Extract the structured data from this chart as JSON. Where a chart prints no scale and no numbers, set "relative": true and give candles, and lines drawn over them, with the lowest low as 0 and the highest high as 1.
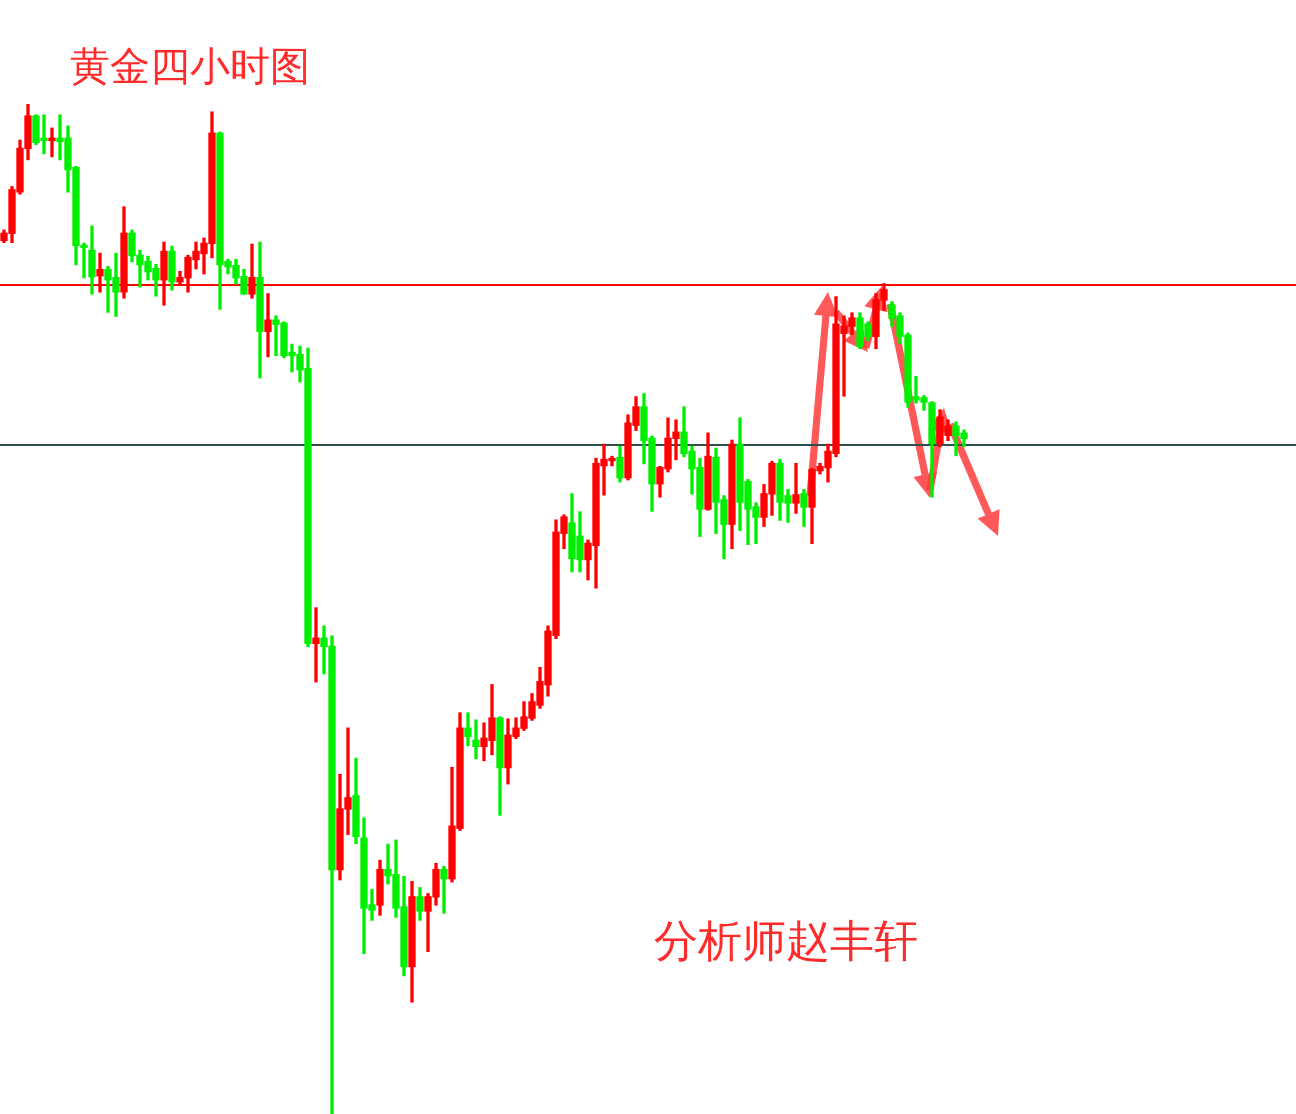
{
  "chart_data": {
    "type": "candlestick",
    "title": "黄金四小时图",
    "annotations": [
      "分析师赵丰轩"
    ],
    "relative": true,
    "categories": [
      null,
      null,
      null,
      null,
      null,
      null,
      null,
      null,
      null,
      null,
      null,
      null,
      null,
      null,
      null,
      null,
      null,
      null,
      null,
      null,
      null,
      null,
      null,
      null,
      null,
      null,
      null,
      null,
      null,
      null,
      null,
      null,
      null,
      null,
      null,
      null,
      null,
      null,
      null,
      null,
      null,
      null,
      null,
      null,
      null,
      null,
      null,
      null,
      null,
      null,
      null,
      null,
      null,
      null,
      null,
      null,
      null,
      null,
      null,
      null,
      null,
      null,
      null,
      null,
      null,
      null,
      null,
      null,
      null,
      null,
      null,
      null,
      null,
      null,
      null,
      null,
      null,
      null,
      null,
      null,
      null,
      null,
      null,
      null,
      null,
      null,
      null,
      null,
      null,
      null,
      null,
      null,
      null,
      null,
      null,
      null,
      null,
      null,
      null,
      null,
      null,
      null,
      null,
      null,
      null,
      null,
      null,
      null,
      null,
      null,
      null,
      null,
      null,
      null,
      null,
      null,
      null,
      null,
      null,
      null,
      null
    ],
    "ohlc": [
      [
        0.865,
        0.875,
        0.863,
        0.872
      ],
      [
        0.872,
        0.918,
        0.863,
        0.915
      ],
      [
        0.913,
        0.964,
        0.911,
        0.956
      ],
      [
        0.956,
        1,
        0.945,
        0.988
      ],
      [
        0.988,
        0.989,
        0.96,
        0.962
      ],
      [
        0.966,
        0.989,
        0.951,
        0.964
      ],
      [
        0.964,
        0.976,
        0.948,
        0.966
      ],
      [
        0.966,
        0.989,
        0.945,
        0.963
      ],
      [
        0.966,
        0.978,
        0.913,
        0.935
      ],
      [
        0.937,
        0.938,
        0.841,
        0.86
      ],
      [
        0.86,
        0.862,
        0.828,
        0.858
      ],
      [
        0.855,
        0.879,
        0.812,
        0.829
      ],
      [
        0.83,
        0.852,
        0.814,
        0.836
      ],
      [
        0.836,
        0.839,
        0.794,
        0.826
      ],
      [
        0.828,
        0.852,
        0.79,
        0.814
      ],
      [
        0.814,
        0.898,
        0.808,
        0.872
      ],
      [
        0.872,
        0.875,
        0.844,
        0.85
      ],
      [
        0.85,
        0.855,
        0.819,
        0.841
      ],
      [
        0.844,
        0.849,
        0.826,
        0.834
      ],
      [
        0.837,
        0.841,
        0.81,
        0.826
      ],
      [
        0.826,
        0.863,
        0.801,
        0.854
      ],
      [
        0.854,
        0.859,
        0.816,
        0.824
      ],
      [
        0.824,
        0.834,
        0.821,
        0.828
      ],
      [
        0.828,
        0.85,
        0.814,
        0.848
      ],
      [
        0.846,
        0.863,
        0.837,
        0.854
      ],
      [
        0.852,
        0.867,
        0.832,
        0.862
      ],
      [
        0.862,
        0.992,
        0.848,
        0.971
      ],
      [
        0.971,
        0.972,
        0.797,
        0.841
      ],
      [
        0.844,
        0.846,
        0.832,
        0.839
      ],
      [
        0.84,
        0.846,
        0.822,
        0.828
      ],
      [
        0.829,
        0.836,
        0.812,
        0.812
      ],
      [
        0.812,
        0.861,
        0.808,
        0.828
      ],
      [
        0.828,
        0.863,
        0.729,
        0.775
      ],
      [
        0.775,
        0.812,
        0.75,
        0.786
      ],
      [
        0.786,
        0.79,
        0.751,
        0.782
      ],
      [
        0.783,
        0.784,
        0.749,
        0.751
      ],
      [
        0.754,
        0.762,
        0.735,
        0.751
      ],
      [
        0.752,
        0.76,
        0.725,
        0.737
      ],
      [
        0.738,
        0.758,
        0.463,
        0.466
      ],
      [
        0.466,
        0.501,
        0.428,
        0.471
      ],
      [
        0.471,
        0.483,
        0.436,
        0.463
      ],
      [
        0.463,
        0.473,
        0,
        0.242
      ],
      [
        0.242,
        0.336,
        0.232,
        0.302
      ],
      [
        0.302,
        0.382,
        0.277,
        0.313
      ],
      [
        0.315,
        0.352,
        0.268,
        0.275
      ],
      [
        0.273,
        0.293,
        0.159,
        0.204
      ],
      [
        0.207,
        0.222,
        0.192,
        0.202
      ],
      [
        0.207,
        0.251,
        0.197,
        0.242
      ],
      [
        0.242,
        0.267,
        0.228,
        0.236
      ],
      [
        0.237,
        0.271,
        0.195,
        0.204
      ],
      [
        0.205,
        0.235,
        0.137,
        0.146
      ],
      [
        0.146,
        0.23,
        0.111,
        0.215
      ],
      [
        0.215,
        0.224,
        0.192,
        0.201
      ],
      [
        0.201,
        0.218,
        0.161,
        0.215
      ],
      [
        0.215,
        0.248,
        0.207,
        0.242
      ],
      [
        0.242,
        0.245,
        0.199,
        0.233
      ],
      [
        0.233,
        0.343,
        0.23,
        0.285
      ],
      [
        0.283,
        0.397,
        0.281,
        0.382
      ],
      [
        0.382,
        0.397,
        0.365,
        0.374
      ],
      [
        0.37,
        0.39,
        0.352,
        0.364
      ],
      [
        0.364,
        0.387,
        0.35,
        0.372
      ],
      [
        0.37,
        0.425,
        0.356,
        0.392
      ],
      [
        0.392,
        0.393,
        0.296,
        0.343
      ],
      [
        0.343,
        0.391,
        0.327,
        0.375
      ],
      [
        0.374,
        0.392,
        0.372,
        0.382
      ],
      [
        0.382,
        0.408,
        0.38,
        0.393
      ],
      [
        0.392,
        0.416,
        0.39,
        0.408
      ],
      [
        0.405,
        0.442,
        0.402,
        0.428
      ],
      [
        0.425,
        0.483,
        0.414,
        0.478
      ],
      [
        0.474,
        0.588,
        0.471,
        0.576
      ],
      [
        0.575,
        0.593,
        0.56,
        0.591
      ],
      [
        0.585,
        0.614,
        0.537,
        0.55
      ],
      [
        0.572,
        0.596,
        0.537,
        0.549
      ],
      [
        0.549,
        0.568,
        0.529,
        0.565
      ],
      [
        0.563,
        0.649,
        0.521,
        0.644
      ],
      [
        0.642,
        0.663,
        0.613,
        0.648
      ],
      [
        0.647,
        0.651,
        0.642,
        0.648
      ],
      [
        0.65,
        0.661,
        0.626,
        0.63
      ],
      [
        0.63,
        0.692,
        0.628,
        0.684
      ],
      [
        0.682,
        0.71,
        0.677,
        0.7
      ],
      [
        0.7,
        0.713,
        0.644,
        0.667
      ],
      [
        0.669,
        0.671,
        0.597,
        0.624
      ],
      [
        0.624,
        0.641,
        0.611,
        0.64
      ],
      [
        0.639,
        0.689,
        0.636,
        0.669
      ],
      [
        0.669,
        0.687,
        0.648,
        0.675
      ],
      [
        0.675,
        0.7,
        0.651,
        0.654
      ],
      [
        0.656,
        0.661,
        0.614,
        0.639
      ],
      [
        0.64,
        0.649,
        0.572,
        0.599
      ],
      [
        0.599,
        0.674,
        0.598,
        0.651
      ],
      [
        0.65,
        0.659,
        0.575,
        0.606
      ],
      [
        0.608,
        0.612,
        0.55,
        0.584
      ],
      [
        0.584,
        0.667,
        0.56,
        0.663
      ],
      [
        0.663,
        0.689,
        0.578,
        0.606
      ],
      [
        0.626,
        0.628,
        0.564,
        0.599
      ],
      [
        0.601,
        0.605,
        0.565,
        0.591
      ],
      [
        0.591,
        0.623,
        0.582,
        0.614
      ],
      [
        0.614,
        0.646,
        0.593,
        0.644
      ],
      [
        0.644,
        0.648,
        0.588,
        0.606
      ],
      [
        0.612,
        0.618,
        0.586,
        0.605
      ],
      [
        0.605,
        0.644,
        0.595,
        0.613
      ],
      [
        0.614,
        0.618,
        0.582,
        0.601
      ],
      [
        0.601,
        0.639,
        0.565,
        0.638
      ],
      [
        0.637,
        0.644,
        0.634,
        0.641
      ],
      [
        0.64,
        0.663,
        0.626,
        0.656
      ],
      [
        0.654,
        0.809,
        0.651,
        0.782
      ],
      [
        0.773,
        0.79,
        0.711,
        0.78
      ],
      [
        0.78,
        0.793,
        0.772,
        0.788
      ],
      [
        0.788,
        0.793,
        0.758,
        0.76
      ],
      [
        0.782,
        0.784,
        0.766,
        0.77
      ],
      [
        0.77,
        0.812,
        0.758,
        0.806
      ],
      [
        0.806,
        0.822,
        0.796,
        0.816
      ],
      [
        0.801,
        0.804,
        0.78,
        0.788
      ],
      [
        0.79,
        0.793,
        0.763,
        0.77
      ],
      [
        0.771,
        0.773,
        0.7,
        0.705
      ],
      [
        0.71,
        0.73,
        0.704,
        0.707
      ],
      [
        0.709,
        0.711,
        0.697,
        0.705
      ],
      [
        0.704,
        0.705,
        0.611,
        0.664
      ],
      [
        0.664,
        0.697,
        0.661,
        0.69
      ],
      [
        0.672,
        0.687,
        0.667,
        0.681
      ],
      [
        0.681,
        0.685,
        0.652,
        0.672
      ],
      [
        0.674,
        0.677,
        0.661,
        0.669
      ]
    ],
    "colors": [
      "#ff0000",
      "#ff0000",
      "#ff0000",
      "#ff0000",
      "#00ee00",
      "#00ee00",
      "#ff0000",
      "#00ee00",
      "#00ee00",
      "#00ee00",
      "#00ee00",
      "#00ee00",
      "#ff0000",
      "#00ee00",
      "#00ee00",
      "#ff0000",
      "#00ee00",
      "#00ee00",
      "#00ee00",
      "#00ee00",
      "#ff0000",
      "#00ee00",
      "#ff0000",
      "#ff0000",
      "#ff0000",
      "#ff0000",
      "#ff0000",
      "#00ee00",
      "#00ee00",
      "#00ee00",
      "#00ee00",
      "#ff0000",
      "#00ee00",
      "#ff0000",
      "#00ee00",
      "#00ee00",
      "#00ee00",
      "#00ee00",
      "#00ee00",
      "#ff0000",
      "#00ee00",
      "#00ee00",
      "#ff0000",
      "#ff0000",
      "#00ee00",
      "#00ee00",
      "#00ee00",
      "#ff0000",
      "#00ee00",
      "#00ee00",
      "#00ee00",
      "#ff0000",
      "#00ee00",
      "#ff0000",
      "#ff0000",
      "#00ee00",
      "#ff0000",
      "#ff0000",
      "#00ee00",
      "#00ee00",
      "#ff0000",
      "#ff0000",
      "#00ee00",
      "#ff0000",
      "#ff0000",
      "#ff0000",
      "#ff0000",
      "#ff0000",
      "#ff0000",
      "#ff0000",
      "#ff0000",
      "#00ee00",
      "#00ee00",
      "#ff0000",
      "#ff0000",
      "#ff0000",
      "#ff0000",
      "#00ee00",
      "#ff0000",
      "#ff0000",
      "#00ee00",
      "#00ee00",
      "#ff0000",
      "#ff0000",
      "#ff0000",
      "#00ee00",
      "#00ee00",
      "#00ee00",
      "#ff0000",
      "#00ee00",
      "#00ee00",
      "#ff0000",
      "#00ee00",
      "#00ee00",
      "#00ee00",
      "#ff0000",
      "#ff0000",
      "#00ee00",
      "#00ee00",
      "#ff0000",
      "#00ee00",
      "#ff0000",
      "#ff0000",
      "#ff0000",
      "#ff0000",
      "#ff0000",
      "#ff0000",
      "#00ee00",
      "#00ee00",
      "#ff0000",
      "#ff0000",
      "#00ee00",
      "#00ee00",
      "#00ee00",
      "#00ee00",
      "#00ee00",
      "#00ee00",
      "#ff0000",
      "#ff0000",
      "#00ee00",
      "#00ee00"
    ],
    "ref_lines": [
      {
        "axis": "y",
        "value": 0.822,
        "color": "#ff0000"
      },
      {
        "axis": "y",
        "value": 0.663,
        "color": "#2f4f4f"
      }
    ]
  }
}
